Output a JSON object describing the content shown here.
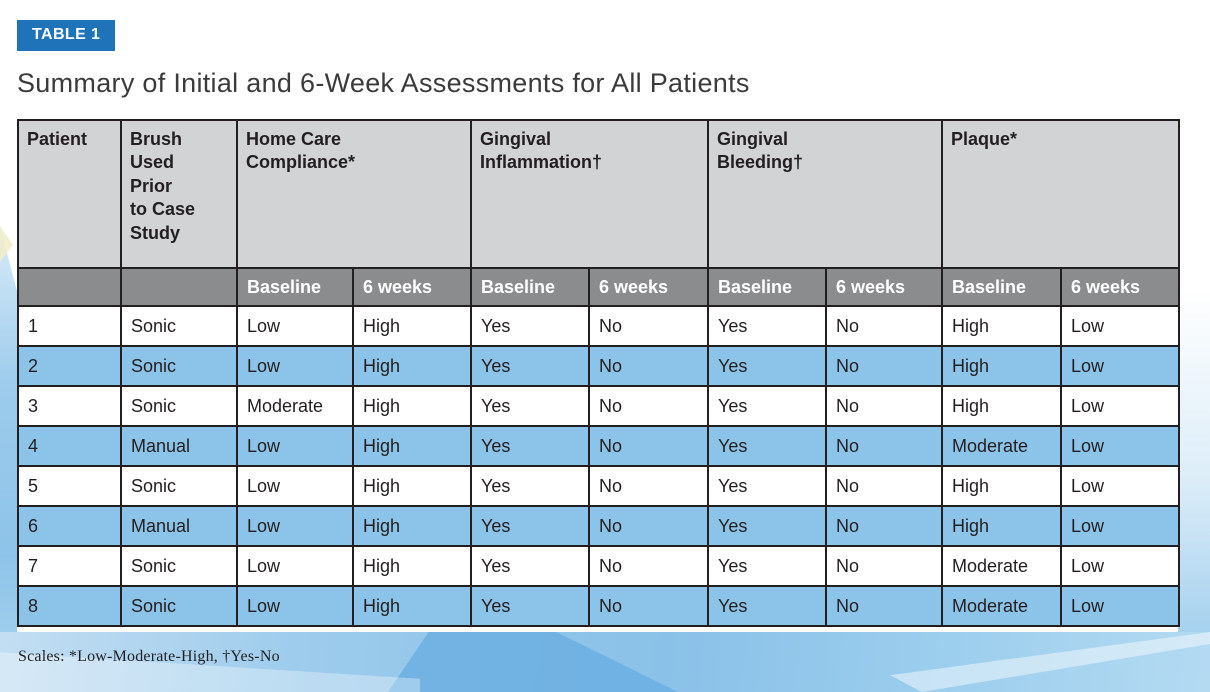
{
  "badge": {
    "label": "TABLE 1"
  },
  "title": "Summary of Initial and 6-Week Assessments for All Patients",
  "table": {
    "column_groups": [
      {
        "label": "Patient",
        "subcolumns": []
      },
      {
        "label": "Brush\nUsed\nPrior\nto Case\nStudy",
        "subcolumns": []
      },
      {
        "label": "Home Care\nCompliance*",
        "subcolumns": [
          "Baseline",
          "6 weeks"
        ]
      },
      {
        "label": "Gingival\nInflammation†",
        "subcolumns": [
          "Baseline",
          "6 weeks"
        ]
      },
      {
        "label": "Gingival\nBleeding†",
        "subcolumns": [
          "Baseline",
          "6 weeks"
        ]
      },
      {
        "label": "Plaque*",
        "subcolumns": [
          "Baseline",
          "6 weeks"
        ]
      }
    ],
    "rows": [
      [
        "1",
        "Sonic",
        "Low",
        "High",
        "Yes",
        "No",
        "Yes",
        "No",
        "High",
        "Low"
      ],
      [
        "2",
        "Sonic",
        "Low",
        "High",
        "Yes",
        "No",
        "Yes",
        "No",
        "High",
        "Low"
      ],
      [
        "3",
        "Sonic",
        "Moderate",
        "High",
        "Yes",
        "No",
        "Yes",
        "No",
        "High",
        "Low"
      ],
      [
        "4",
        "Manual",
        "Low",
        "High",
        "Yes",
        "No",
        "Yes",
        "No",
        "Moderate",
        "Low"
      ],
      [
        "5",
        "Sonic",
        "Low",
        "High",
        "Yes",
        "No",
        "Yes",
        "No",
        "High",
        "Low"
      ],
      [
        "6",
        "Manual",
        "Low",
        "High",
        "Yes",
        "No",
        "Yes",
        "No",
        "High",
        "Low"
      ],
      [
        "7",
        "Sonic",
        "Low",
        "High",
        "Yes",
        "No",
        "Yes",
        "No",
        "Moderate",
        "Low"
      ],
      [
        "8",
        "Sonic",
        "Low",
        "High",
        "Yes",
        "No",
        "Yes",
        "No",
        "Moderate",
        "Low"
      ]
    ]
  },
  "footnote": "Scales: *Low-Moderate-High, †Yes-No",
  "colors": {
    "badge_blue": "#1e73b9",
    "header_gray": "#d2d3d5",
    "subheader_gray": "#8a8c8e",
    "row_alt_blue": "#8cc3e8",
    "border_dark": "#231f20",
    "wave_blue": "#8ac1e8"
  }
}
